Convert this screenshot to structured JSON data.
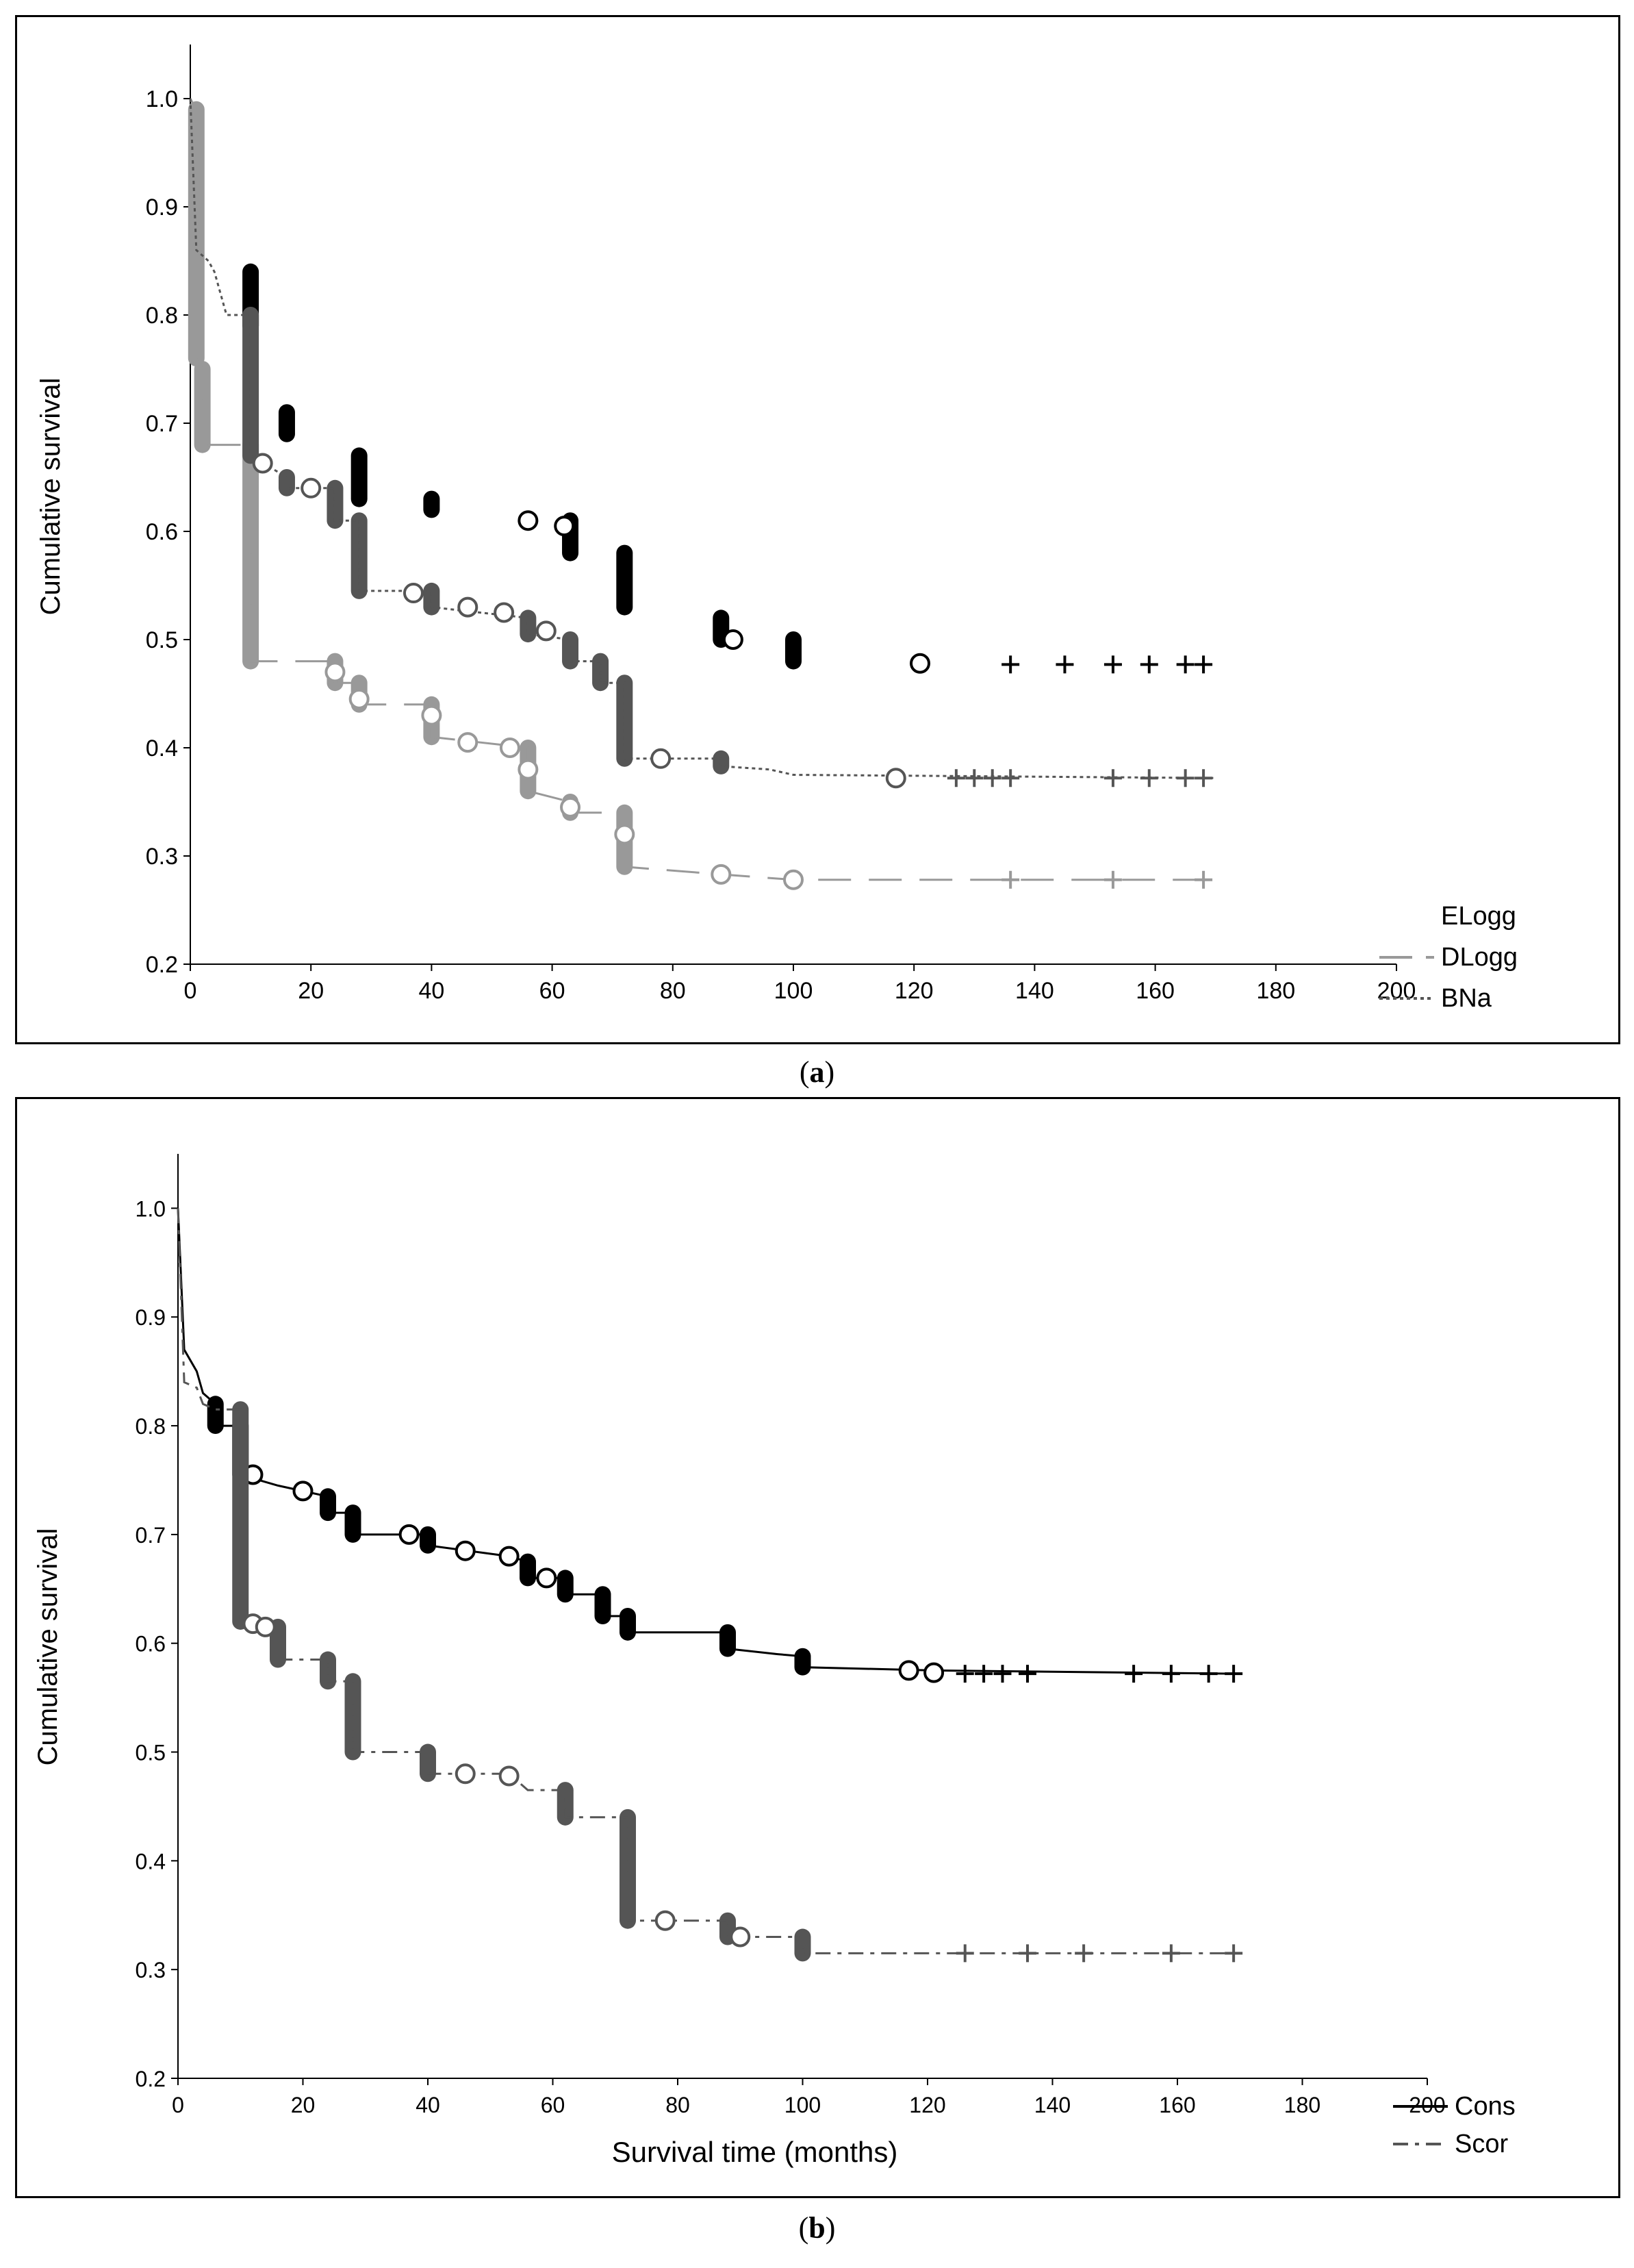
{
  "charts": [
    {
      "id": "a",
      "caption_label": "a",
      "title": "",
      "ylabel": "Cumulative survival",
      "xlabel": "",
      "x_ticks": [
        "0",
        "20",
        "40",
        "60",
        "80",
        "100",
        "120",
        "140",
        "160",
        "180",
        "200"
      ],
      "y_ticks": [
        "0.2",
        "0.3",
        "0.4",
        "0.5",
        "0.6",
        "0.7",
        "0.8",
        "0.9",
        "1.0"
      ]
    },
    {
      "id": "b",
      "caption_label": "b",
      "title": "",
      "ylabel": "Cumulative survival",
      "xlabel": "Survival time (months)",
      "x_ticks": [
        "0",
        "20",
        "40",
        "60",
        "80",
        "100",
        "120",
        "140",
        "160",
        "180",
        "200"
      ],
      "y_ticks": [
        "0.2",
        "0.3",
        "0.4",
        "0.5",
        "0.6",
        "0.7",
        "0.8",
        "0.9",
        "1.0"
      ]
    }
  ],
  "chart_data": [
    {
      "type": "line",
      "subtype": "kaplan-meier",
      "title": "",
      "xlabel": "",
      "ylabel": "Cumulative survival",
      "xlim": [
        0,
        200
      ],
      "ylim": [
        0.2,
        1.05
      ],
      "legend_position": "bottom-right",
      "series": [
        {
          "name": "ELogg",
          "color": "#000000",
          "line_style": "none",
          "step_points": [
            [
              0,
              1.0
            ],
            [
              4,
              0.87
            ],
            [
              6,
              0.85
            ],
            [
              10,
              0.84
            ],
            [
              10,
              0.79
            ],
            [
              16,
              0.71
            ],
            [
              16,
              0.69
            ],
            [
              24,
              0.68
            ],
            [
              28,
              0.67
            ],
            [
              28,
              0.63
            ],
            [
              40,
              0.63
            ],
            [
              40,
              0.62
            ],
            [
              56,
              0.61
            ],
            [
              63,
              0.61
            ],
            [
              63,
              0.58
            ],
            [
              72,
              0.58
            ],
            [
              72,
              0.53
            ],
            [
              88,
              0.52
            ],
            [
              88,
              0.5
            ],
            [
              100,
              0.5
            ],
            [
              100,
              0.48
            ],
            [
              170,
              0.48
            ]
          ],
          "censor_circles": [
            [
              56,
              0.61
            ],
            [
              62,
              0.605
            ],
            [
              90,
              0.5
            ],
            [
              121,
              0.478
            ]
          ],
          "censor_plus": [
            [
              136,
              0.477
            ],
            [
              145,
              0.477
            ],
            [
              153,
              0.477
            ],
            [
              159,
              0.477
            ],
            [
              165,
              0.477
            ],
            [
              168,
              0.477
            ]
          ]
        },
        {
          "name": "DLogg",
          "color": "#999999",
          "line_style": "long-dash",
          "step_points": [
            [
              0,
              1.0
            ],
            [
              1,
              0.99
            ],
            [
              1,
              0.76
            ],
            [
              2,
              0.75
            ],
            [
              2,
              0.68
            ],
            [
              10,
              0.68
            ],
            [
              10,
              0.48
            ],
            [
              24,
              0.48
            ],
            [
              24,
              0.46
            ],
            [
              28,
              0.46
            ],
            [
              28,
              0.44
            ],
            [
              40,
              0.44
            ],
            [
              40,
              0.41
            ],
            [
              56,
              0.4
            ],
            [
              56,
              0.36
            ],
            [
              63,
              0.35
            ],
            [
              63,
              0.34
            ],
            [
              72,
              0.34
            ],
            [
              72,
              0.29
            ],
            [
              88,
              0.283
            ],
            [
              100,
              0.278
            ],
            [
              170,
              0.278
            ]
          ],
          "censor_circles": [
            [
              24,
              0.47
            ],
            [
              28,
              0.445
            ],
            [
              40,
              0.43
            ],
            [
              46,
              0.405
            ],
            [
              53,
              0.4
            ],
            [
              56,
              0.38
            ],
            [
              63,
              0.345
            ],
            [
              72,
              0.32
            ],
            [
              88,
              0.283
            ],
            [
              100,
              0.278
            ]
          ],
          "censor_plus": [
            [
              136,
              0.278
            ],
            [
              153,
              0.278
            ],
            [
              168,
              0.278
            ]
          ]
        },
        {
          "name": "BNa",
          "color": "#555555",
          "line_style": "dotted",
          "step_points": [
            [
              0,
              1.0
            ],
            [
              1,
              0.86
            ],
            [
              3,
              0.85
            ],
            [
              4,
              0.84
            ],
            [
              6,
              0.8
            ],
            [
              10,
              0.8
            ],
            [
              10,
              0.67
            ],
            [
              16,
              0.65
            ],
            [
              16,
              0.64
            ],
            [
              24,
              0.64
            ],
            [
              24,
              0.61
            ],
            [
              28,
              0.61
            ],
            [
              28,
              0.545
            ],
            [
              40,
              0.545
            ],
            [
              40,
              0.53
            ],
            [
              56,
              0.52
            ],
            [
              56,
              0.505
            ],
            [
              63,
              0.5
            ],
            [
              63,
              0.48
            ],
            [
              68,
              0.48
            ],
            [
              68,
              0.46
            ],
            [
              72,
              0.46
            ],
            [
              72,
              0.39
            ],
            [
              88,
              0.39
            ],
            [
              88,
              0.383
            ],
            [
              96,
              0.38
            ],
            [
              100,
              0.375
            ],
            [
              170,
              0.372
            ]
          ],
          "censor_circles": [
            [
              12,
              0.663
            ],
            [
              20,
              0.64
            ],
            [
              37,
              0.543
            ],
            [
              46,
              0.53
            ],
            [
              52,
              0.525
            ],
            [
              59,
              0.508
            ],
            [
              78,
              0.39
            ],
            [
              117,
              0.372
            ]
          ],
          "censor_plus": [
            [
              127,
              0.372
            ],
            [
              130,
              0.372
            ],
            [
              133,
              0.372
            ],
            [
              136,
              0.372
            ],
            [
              153,
              0.372
            ],
            [
              159,
              0.372
            ],
            [
              165,
              0.372
            ],
            [
              168,
              0.372
            ]
          ]
        }
      ]
    },
    {
      "type": "line",
      "subtype": "kaplan-meier",
      "title": "",
      "xlabel": "Survival time (months)",
      "ylabel": "Cumulative survival",
      "xlim": [
        0,
        200
      ],
      "ylim": [
        0.2,
        1.05
      ],
      "legend_position": "bottom-right",
      "series": [
        {
          "name": "Cons",
          "color": "#000000",
          "line_style": "solid",
          "step_points": [
            [
              0,
              1.0
            ],
            [
              1,
              0.87
            ],
            [
              3,
              0.85
            ],
            [
              4,
              0.83
            ],
            [
              6,
              0.82
            ],
            [
              6,
              0.8
            ],
            [
              10,
              0.8
            ],
            [
              10,
              0.755
            ],
            [
              16,
              0.745
            ],
            [
              20,
              0.74
            ],
            [
              24,
              0.735
            ],
            [
              24,
              0.72
            ],
            [
              28,
              0.72
            ],
            [
              28,
              0.7
            ],
            [
              40,
              0.7
            ],
            [
              40,
              0.69
            ],
            [
              53,
              0.68
            ],
            [
              56,
              0.675
            ],
            [
              56,
              0.66
            ],
            [
              62,
              0.66
            ],
            [
              62,
              0.645
            ],
            [
              68,
              0.645
            ],
            [
              68,
              0.625
            ],
            [
              72,
              0.625
            ],
            [
              72,
              0.61
            ],
            [
              88,
              0.61
            ],
            [
              88,
              0.595
            ],
            [
              96,
              0.59
            ],
            [
              100,
              0.588
            ],
            [
              100,
              0.578
            ],
            [
              121,
              0.575
            ],
            [
              170,
              0.572
            ]
          ],
          "censor_circles": [
            [
              12,
              0.755
            ],
            [
              20,
              0.74
            ],
            [
              37,
              0.7
            ],
            [
              46,
              0.685
            ],
            [
              53,
              0.68
            ],
            [
              59,
              0.66
            ],
            [
              117,
              0.575
            ],
            [
              121,
              0.573
            ]
          ],
          "censor_plus": [
            [
              126,
              0.572
            ],
            [
              129,
              0.572
            ],
            [
              132,
              0.572
            ],
            [
              136,
              0.572
            ],
            [
              153,
              0.572
            ],
            [
              159,
              0.572
            ],
            [
              165,
              0.572
            ],
            [
              169,
              0.572
            ]
          ]
        },
        {
          "name": "Scor",
          "color": "#555555",
          "line_style": "dash-dot",
          "step_points": [
            [
              0,
              1.0
            ],
            [
              1,
              0.84
            ],
            [
              3,
              0.835
            ],
            [
              4,
              0.82
            ],
            [
              6,
              0.815
            ],
            [
              10,
              0.815
            ],
            [
              10,
              0.62
            ],
            [
              16,
              0.615
            ],
            [
              16,
              0.585
            ],
            [
              24,
              0.585
            ],
            [
              24,
              0.565
            ],
            [
              28,
              0.565
            ],
            [
              28,
              0.5
            ],
            [
              40,
              0.5
            ],
            [
              40,
              0.48
            ],
            [
              53,
              0.48
            ],
            [
              56,
              0.465
            ],
            [
              62,
              0.465
            ],
            [
              62,
              0.44
            ],
            [
              72,
              0.44
            ],
            [
              72,
              0.345
            ],
            [
              88,
              0.345
            ],
            [
              88,
              0.33
            ],
            [
              100,
              0.33
            ],
            [
              100,
              0.315
            ],
            [
              170,
              0.315
            ]
          ],
          "censor_circles": [
            [
              12,
              0.618
            ],
            [
              14,
              0.615
            ],
            [
              46,
              0.48
            ],
            [
              53,
              0.478
            ],
            [
              78,
              0.345
            ],
            [
              90,
              0.33
            ]
          ],
          "censor_plus": [
            [
              126,
              0.315
            ],
            [
              136,
              0.315
            ],
            [
              145,
              0.315
            ],
            [
              159,
              0.315
            ],
            [
              169,
              0.315
            ]
          ]
        }
      ]
    }
  ]
}
